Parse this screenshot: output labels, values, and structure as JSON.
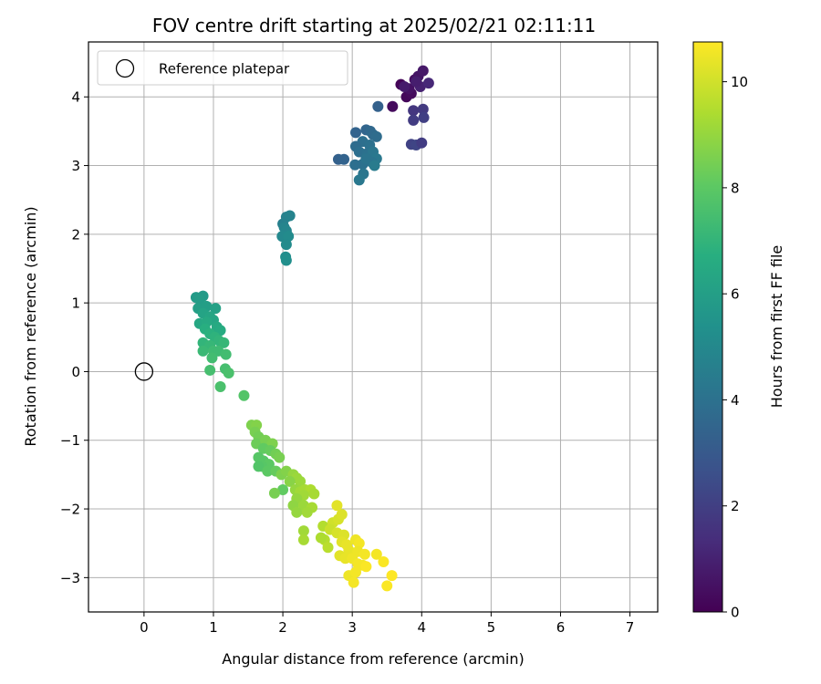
{
  "chart_data": {
    "type": "scatter",
    "title": "FOV centre drift starting at 2025/02/21 02:11:11",
    "xlabel": "Angular distance from reference (arcmin)",
    "ylabel": "Rotation from reference (arcmin)",
    "xlim": [
      -0.8,
      7.4
    ],
    "ylim": [
      -3.5,
      4.8
    ],
    "xticks": [
      0,
      1,
      2,
      3,
      4,
      5,
      6,
      7
    ],
    "xtick_labels": [
      "0",
      "1",
      "2",
      "3",
      "4",
      "5",
      "6",
      "7"
    ],
    "yticks": [
      -3,
      -2,
      -1,
      0,
      1,
      2,
      3,
      4
    ],
    "ytick_labels": [
      "−3",
      "−2",
      "−1",
      "0",
      "1",
      "2",
      "3",
      "4"
    ],
    "grid": true,
    "legend": {
      "placement": "top-left",
      "entries": [
        "Reference platepar"
      ]
    },
    "colorbar": {
      "label": "Hours from first FF file",
      "range": [
        0,
        10.75
      ],
      "ticks": [
        0,
        2,
        4,
        6,
        8,
        10
      ],
      "tick_labels": [
        "0",
        "2",
        "4",
        "6",
        "8",
        "10"
      ],
      "colormap": "viridis"
    },
    "reference": {
      "x": 0,
      "y": 0
    },
    "points": [
      {
        "x": 3.7,
        "y": 4.18,
        "c": 0.1
      },
      {
        "x": 3.78,
        "y": 4.0,
        "c": 0.2
      },
      {
        "x": 3.85,
        "y": 4.05,
        "c": 0.3
      },
      {
        "x": 3.9,
        "y": 4.25,
        "c": 0.4
      },
      {
        "x": 3.95,
        "y": 4.3,
        "c": 0.6
      },
      {
        "x": 4.02,
        "y": 4.38,
        "c": 0.7
      },
      {
        "x": 3.82,
        "y": 4.12,
        "c": 0.5
      },
      {
        "x": 3.58,
        "y": 3.86,
        "c": 0.3
      },
      {
        "x": 3.75,
        "y": 4.15,
        "c": 0.8
      },
      {
        "x": 3.98,
        "y": 4.15,
        "c": 1.0
      },
      {
        "x": 4.1,
        "y": 4.2,
        "c": 1.2
      },
      {
        "x": 3.92,
        "y": 4.22,
        "c": 0.9
      },
      {
        "x": 3.88,
        "y": 3.8,
        "c": 1.7
      },
      {
        "x": 4.02,
        "y": 3.82,
        "c": 1.8
      },
      {
        "x": 3.88,
        "y": 3.66,
        "c": 1.9
      },
      {
        "x": 4.03,
        "y": 3.7,
        "c": 2.0
      },
      {
        "x": 3.85,
        "y": 3.31,
        "c": 2.1
      },
      {
        "x": 3.92,
        "y": 3.3,
        "c": 2.2
      },
      {
        "x": 4.0,
        "y": 3.33,
        "c": 1.9
      },
      {
        "x": 3.37,
        "y": 3.86,
        "c": 3.3
      },
      {
        "x": 3.05,
        "y": 3.48,
        "c": 3.4
      },
      {
        "x": 3.2,
        "y": 3.52,
        "c": 3.5
      },
      {
        "x": 3.26,
        "y": 3.5,
        "c": 3.6
      },
      {
        "x": 3.3,
        "y": 3.45,
        "c": 3.7
      },
      {
        "x": 3.35,
        "y": 3.42,
        "c": 3.8
      },
      {
        "x": 3.15,
        "y": 3.35,
        "c": 3.9
      },
      {
        "x": 3.25,
        "y": 3.3,
        "c": 4.0
      },
      {
        "x": 3.05,
        "y": 3.28,
        "c": 3.8
      },
      {
        "x": 3.1,
        "y": 3.2,
        "c": 3.9
      },
      {
        "x": 3.22,
        "y": 3.18,
        "c": 4.0
      },
      {
        "x": 3.3,
        "y": 3.2,
        "c": 4.2
      },
      {
        "x": 3.35,
        "y": 3.1,
        "c": 4.3
      },
      {
        "x": 3.28,
        "y": 3.05,
        "c": 4.1
      },
      {
        "x": 3.15,
        "y": 3.02,
        "c": 4.0
      },
      {
        "x": 3.04,
        "y": 3.01,
        "c": 3.9
      },
      {
        "x": 2.8,
        "y": 3.09,
        "c": 3.3
      },
      {
        "x": 2.88,
        "y": 3.09,
        "c": 3.4
      },
      {
        "x": 3.16,
        "y": 2.88,
        "c": 4.2
      },
      {
        "x": 3.1,
        "y": 2.79,
        "c": 4.3
      },
      {
        "x": 3.2,
        "y": 3.1,
        "c": 4.1
      },
      {
        "x": 3.32,
        "y": 3.0,
        "c": 4.4
      },
      {
        "x": 2.0,
        "y": 2.15,
        "c": 4.6
      },
      {
        "x": 2.05,
        "y": 2.25,
        "c": 4.7
      },
      {
        "x": 2.1,
        "y": 2.27,
        "c": 4.75
      },
      {
        "x": 2.02,
        "y": 2.1,
        "c": 4.8
      },
      {
        "x": 2.05,
        "y": 2.05,
        "c": 4.9
      },
      {
        "x": 1.99,
        "y": 1.97,
        "c": 5.0
      },
      {
        "x": 2.08,
        "y": 1.97,
        "c": 5.1
      },
      {
        "x": 2.05,
        "y": 1.85,
        "c": 5.1
      },
      {
        "x": 2.04,
        "y": 1.67,
        "c": 5.2
      },
      {
        "x": 2.05,
        "y": 1.62,
        "c": 5.3
      },
      {
        "x": 0.75,
        "y": 1.08,
        "c": 5.8
      },
      {
        "x": 0.85,
        "y": 1.1,
        "c": 5.8
      },
      {
        "x": 0.8,
        "y": 1.05,
        "c": 5.9
      },
      {
        "x": 0.78,
        "y": 0.92,
        "c": 6.0
      },
      {
        "x": 0.9,
        "y": 0.95,
        "c": 6.0
      },
      {
        "x": 1.03,
        "y": 0.92,
        "c": 6.1
      },
      {
        "x": 0.85,
        "y": 0.85,
        "c": 6.2
      },
      {
        "x": 0.95,
        "y": 0.8,
        "c": 6.3
      },
      {
        "x": 1.0,
        "y": 0.75,
        "c": 6.3
      },
      {
        "x": 0.8,
        "y": 0.7,
        "c": 6.4
      },
      {
        "x": 0.9,
        "y": 0.72,
        "c": 6.5
      },
      {
        "x": 1.05,
        "y": 0.65,
        "c": 6.5
      },
      {
        "x": 1.1,
        "y": 0.6,
        "c": 6.6
      },
      {
        "x": 0.88,
        "y": 0.62,
        "c": 6.7
      },
      {
        "x": 0.95,
        "y": 0.55,
        "c": 6.8
      },
      {
        "x": 1.02,
        "y": 0.5,
        "c": 6.9
      },
      {
        "x": 0.85,
        "y": 0.42,
        "c": 7.0
      },
      {
        "x": 1.08,
        "y": 0.45,
        "c": 7.0
      },
      {
        "x": 1.15,
        "y": 0.42,
        "c": 7.1
      },
      {
        "x": 0.95,
        "y": 0.38,
        "c": 7.1
      },
      {
        "x": 0.85,
        "y": 0.3,
        "c": 7.2
      },
      {
        "x": 1.0,
        "y": 0.3,
        "c": 7.3
      },
      {
        "x": 1.07,
        "y": 0.3,
        "c": 7.3
      },
      {
        "x": 1.18,
        "y": 0.25,
        "c": 7.4
      },
      {
        "x": 0.98,
        "y": 0.2,
        "c": 7.4
      },
      {
        "x": 0.95,
        "y": 0.02,
        "c": 7.5
      },
      {
        "x": 1.17,
        "y": 0.04,
        "c": 7.5
      },
      {
        "x": 1.22,
        "y": -0.02,
        "c": 7.6
      },
      {
        "x": 1.1,
        "y": -0.22,
        "c": 7.6
      },
      {
        "x": 1.44,
        "y": -0.35,
        "c": 7.8
      },
      {
        "x": 1.55,
        "y": -0.78,
        "c": 8.6
      },
      {
        "x": 1.62,
        "y": -0.78,
        "c": 8.7
      },
      {
        "x": 1.6,
        "y": -0.88,
        "c": 8.5
      },
      {
        "x": 1.65,
        "y": -0.95,
        "c": 8.4
      },
      {
        "x": 1.62,
        "y": -1.05,
        "c": 8.3
      },
      {
        "x": 1.75,
        "y": -1.0,
        "c": 8.5
      },
      {
        "x": 1.85,
        "y": -1.05,
        "c": 8.6
      },
      {
        "x": 1.72,
        "y": -1.12,
        "c": 8.1
      },
      {
        "x": 1.82,
        "y": -1.15,
        "c": 8.2
      },
      {
        "x": 1.9,
        "y": -1.2,
        "c": 8.4
      },
      {
        "x": 1.95,
        "y": -1.25,
        "c": 8.5
      },
      {
        "x": 1.65,
        "y": -1.25,
        "c": 7.9
      },
      {
        "x": 1.72,
        "y": -1.3,
        "c": 7.9
      },
      {
        "x": 1.8,
        "y": -1.35,
        "c": 8.0
      },
      {
        "x": 1.7,
        "y": -1.38,
        "c": 7.9
      },
      {
        "x": 1.65,
        "y": -1.38,
        "c": 7.8
      },
      {
        "x": 1.78,
        "y": -1.45,
        "c": 8.0
      },
      {
        "x": 1.9,
        "y": -1.45,
        "c": 8.2
      },
      {
        "x": 1.98,
        "y": -1.5,
        "c": 8.6
      },
      {
        "x": 2.05,
        "y": -1.45,
        "c": 8.7
      },
      {
        "x": 2.15,
        "y": -1.5,
        "c": 9.0
      },
      {
        "x": 2.2,
        "y": -1.55,
        "c": 9.1
      },
      {
        "x": 2.25,
        "y": -1.6,
        "c": 9.1
      },
      {
        "x": 2.1,
        "y": -1.6,
        "c": 8.8
      },
      {
        "x": 2.0,
        "y": -1.72,
        "c": 8.1
      },
      {
        "x": 1.88,
        "y": -1.77,
        "c": 8.5
      },
      {
        "x": 2.18,
        "y": -1.72,
        "c": 9.0
      },
      {
        "x": 2.25,
        "y": -1.75,
        "c": 9.2
      },
      {
        "x": 2.32,
        "y": -1.72,
        "c": 9.3
      },
      {
        "x": 2.4,
        "y": -1.72,
        "c": 9.4
      },
      {
        "x": 2.45,
        "y": -1.78,
        "c": 9.3
      },
      {
        "x": 2.3,
        "y": -1.8,
        "c": 9.2
      },
      {
        "x": 2.2,
        "y": -1.85,
        "c": 9.0
      },
      {
        "x": 2.15,
        "y": -1.95,
        "c": 8.9
      },
      {
        "x": 2.3,
        "y": -1.95,
        "c": 9.1
      },
      {
        "x": 2.42,
        "y": -1.98,
        "c": 9.3
      },
      {
        "x": 2.2,
        "y": -2.05,
        "c": 9.0
      },
      {
        "x": 2.35,
        "y": -2.05,
        "c": 9.2
      },
      {
        "x": 2.58,
        "y": -2.25,
        "c": 9.5
      },
      {
        "x": 2.72,
        "y": -2.2,
        "c": 10.0
      },
      {
        "x": 2.8,
        "y": -2.15,
        "c": 10.1
      },
      {
        "x": 2.85,
        "y": -2.08,
        "c": 10.2
      },
      {
        "x": 2.78,
        "y": -1.95,
        "c": 10.3
      },
      {
        "x": 2.68,
        "y": -2.3,
        "c": 9.9
      },
      {
        "x": 2.78,
        "y": -2.35,
        "c": 10.1
      },
      {
        "x": 2.88,
        "y": -2.38,
        "c": 10.2
      },
      {
        "x": 2.3,
        "y": -2.32,
        "c": 9.2
      },
      {
        "x": 2.3,
        "y": -2.45,
        "c": 9.3
      },
      {
        "x": 2.6,
        "y": -2.45,
        "c": 9.5
      },
      {
        "x": 2.55,
        "y": -2.42,
        "c": 9.4
      },
      {
        "x": 2.85,
        "y": -2.48,
        "c": 10.3
      },
      {
        "x": 2.92,
        "y": -2.52,
        "c": 10.4
      },
      {
        "x": 3.05,
        "y": -2.45,
        "c": 10.5
      },
      {
        "x": 3.1,
        "y": -2.5,
        "c": 10.6
      },
      {
        "x": 2.65,
        "y": -2.56,
        "c": 9.6
      },
      {
        "x": 2.95,
        "y": -2.6,
        "c": 10.4
      },
      {
        "x": 3.08,
        "y": -2.62,
        "c": 10.5
      },
      {
        "x": 3.18,
        "y": -2.66,
        "c": 10.6
      },
      {
        "x": 2.82,
        "y": -2.68,
        "c": 10.3
      },
      {
        "x": 2.9,
        "y": -2.72,
        "c": 10.4
      },
      {
        "x": 3.0,
        "y": -2.72,
        "c": 10.5
      },
      {
        "x": 3.08,
        "y": -2.8,
        "c": 10.6
      },
      {
        "x": 3.15,
        "y": -2.82,
        "c": 10.6
      },
      {
        "x": 3.2,
        "y": -2.84,
        "c": 10.7
      },
      {
        "x": 3.35,
        "y": -2.66,
        "c": 10.6
      },
      {
        "x": 3.45,
        "y": -2.77,
        "c": 10.7
      },
      {
        "x": 2.95,
        "y": -2.97,
        "c": 10.5
      },
      {
        "x": 3.05,
        "y": -2.92,
        "c": 10.6
      },
      {
        "x": 3.02,
        "y": -3.07,
        "c": 10.6
      },
      {
        "x": 3.5,
        "y": -3.12,
        "c": 10.7
      },
      {
        "x": 3.57,
        "y": -2.97,
        "c": 10.75
      }
    ]
  }
}
